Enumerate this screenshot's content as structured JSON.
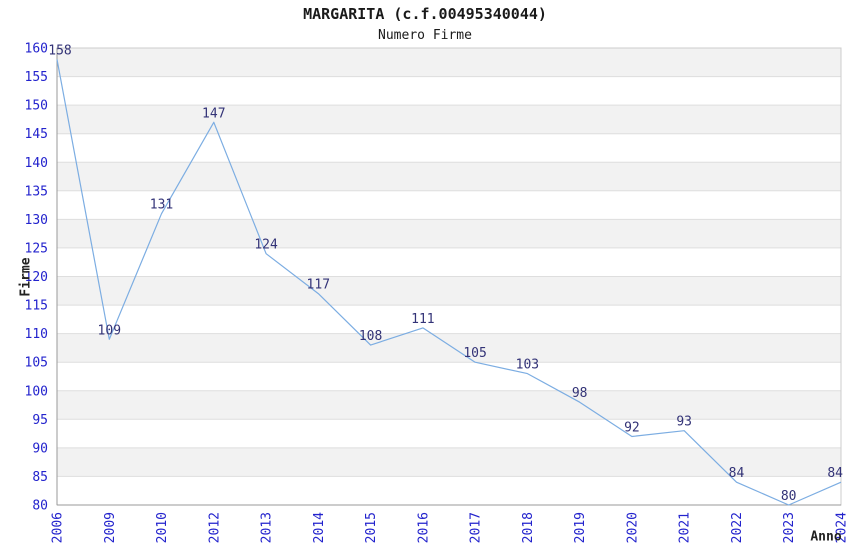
{
  "chart_data": {
    "type": "line",
    "title": "MARGARITA (c.f.00495340044)",
    "subtitle": "Numero Firme",
    "xlabel": "Anno",
    "ylabel": "Firme",
    "categories": [
      "2006",
      "2009",
      "2010",
      "2012",
      "2013",
      "2014",
      "2015",
      "2016",
      "2017",
      "2018",
      "2019",
      "2020",
      "2021",
      "2022",
      "2023",
      "2024"
    ],
    "values": [
      158,
      109,
      131,
      147,
      124,
      117,
      108,
      111,
      105,
      103,
      98,
      92,
      93,
      84,
      80,
      84
    ],
    "data_labels": [
      158,
      109,
      131,
      147,
      124,
      117,
      108,
      111,
      105,
      103,
      98,
      92,
      93,
      84,
      80,
      84
    ],
    "ylim": [
      80,
      160
    ],
    "ytick_step": 5,
    "yticks": [
      80,
      85,
      90,
      95,
      100,
      105,
      110,
      115,
      120,
      125,
      130,
      135,
      140,
      145,
      150,
      155,
      160
    ],
    "grid": "horizontal-bands",
    "legend": "none",
    "markers": "none",
    "colors": {
      "line": "#7cade2",
      "tick_label": "#2323cd",
      "data_label": "#333377",
      "band": "#f2f2f2",
      "gridline": "#dedede",
      "plot_border": "#cccccc",
      "axis_line": "#999999",
      "text": "#1a1a1a",
      "background": "#ffffff"
    }
  }
}
